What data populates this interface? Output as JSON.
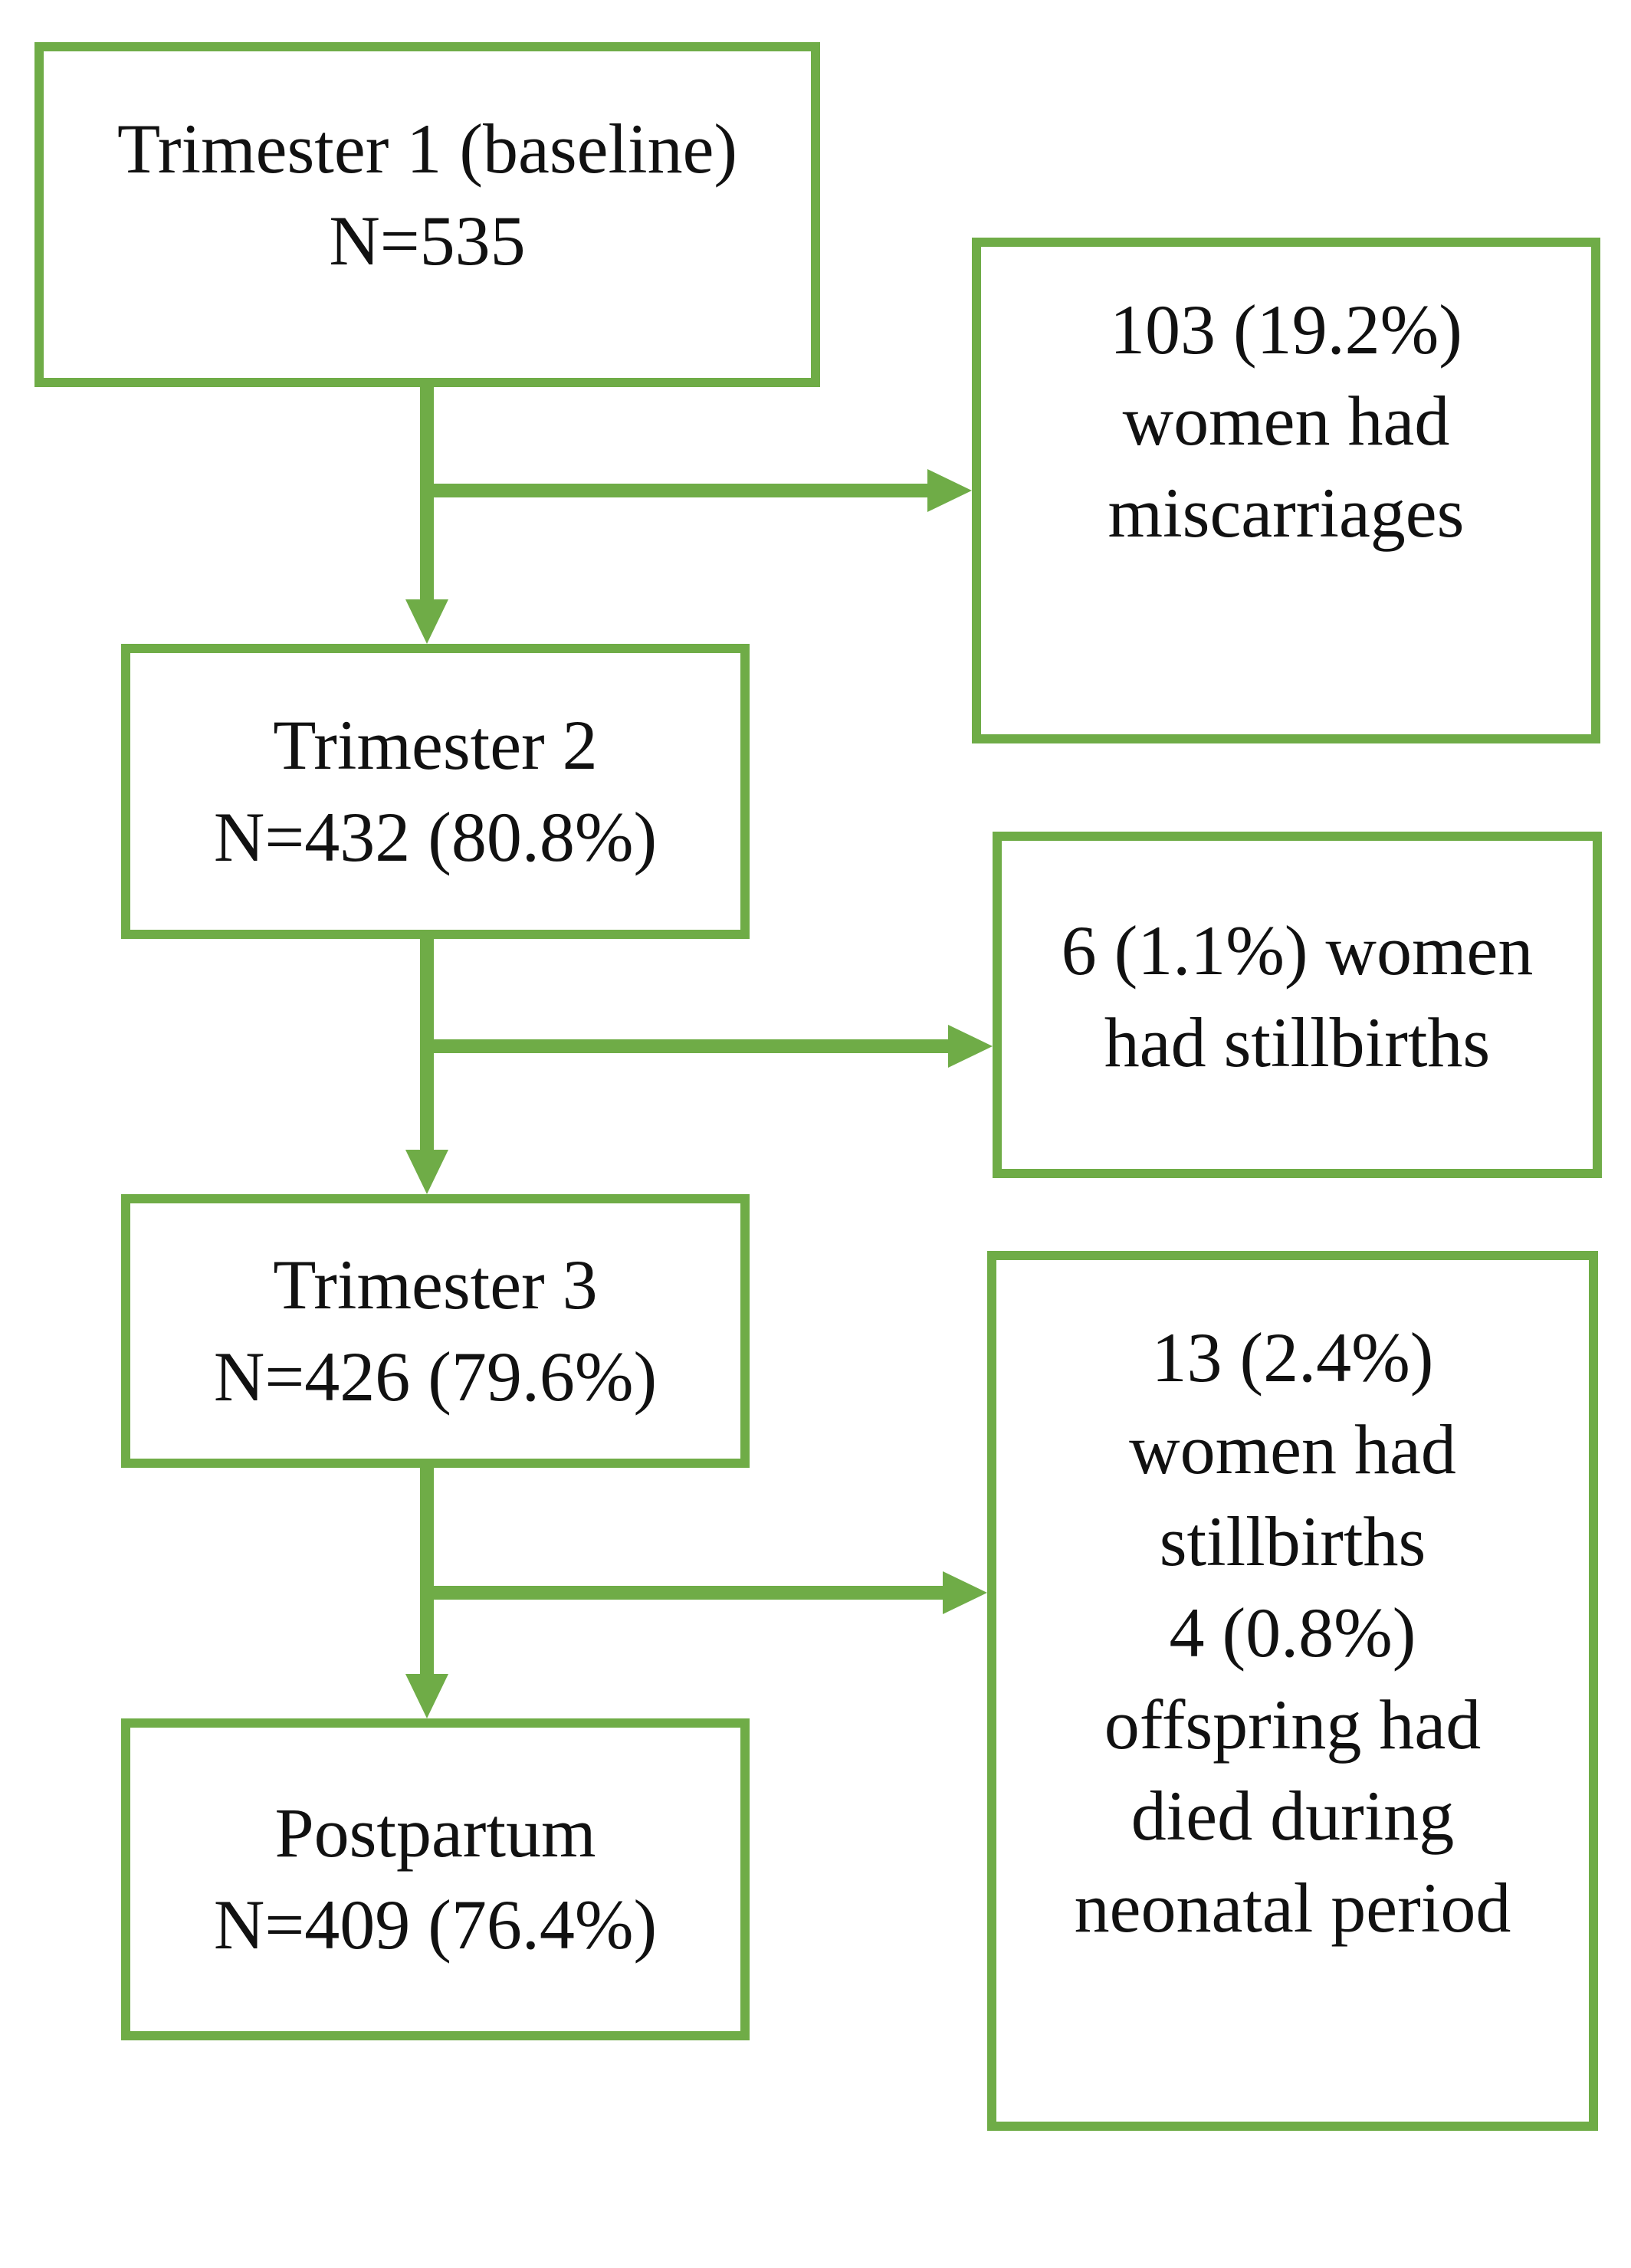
{
  "diagram": {
    "accent_color": "#6FAC47",
    "text_color": "#111111",
    "background_color": "#ffffff",
    "boxes": {
      "trimester1": {
        "lines": [
          "Trimester 1 (baseline)",
          "N=535"
        ]
      },
      "miscarriages": {
        "lines": [
          "103 (19.2%)",
          "women had",
          "miscarriages"
        ]
      },
      "trimester2": {
        "lines": [
          "Trimester 2",
          "N=432 (80.8%)"
        ]
      },
      "stillbirths2": {
        "lines": [
          "6 (1.1%) women",
          "had stillbirths"
        ]
      },
      "trimester3": {
        "lines": [
          "Trimester 3",
          "N=426 (79.6%)"
        ]
      },
      "outcomes3": {
        "lines": [
          "13 (2.4%)",
          "women had",
          "stillbirths",
          "4 (0.8%)",
          "offspring had",
          "died during",
          "neonatal period"
        ]
      },
      "postpartum": {
        "lines": [
          "Postpartum",
          "N=409 (76.4%)"
        ]
      }
    },
    "flow": [
      {
        "from": "trimester1",
        "to": "trimester2",
        "side_branch_to": "miscarriages"
      },
      {
        "from": "trimester2",
        "to": "trimester3",
        "side_branch_to": "stillbirths2"
      },
      {
        "from": "trimester3",
        "to": "postpartum",
        "side_branch_to": "outcomes3"
      }
    ]
  }
}
